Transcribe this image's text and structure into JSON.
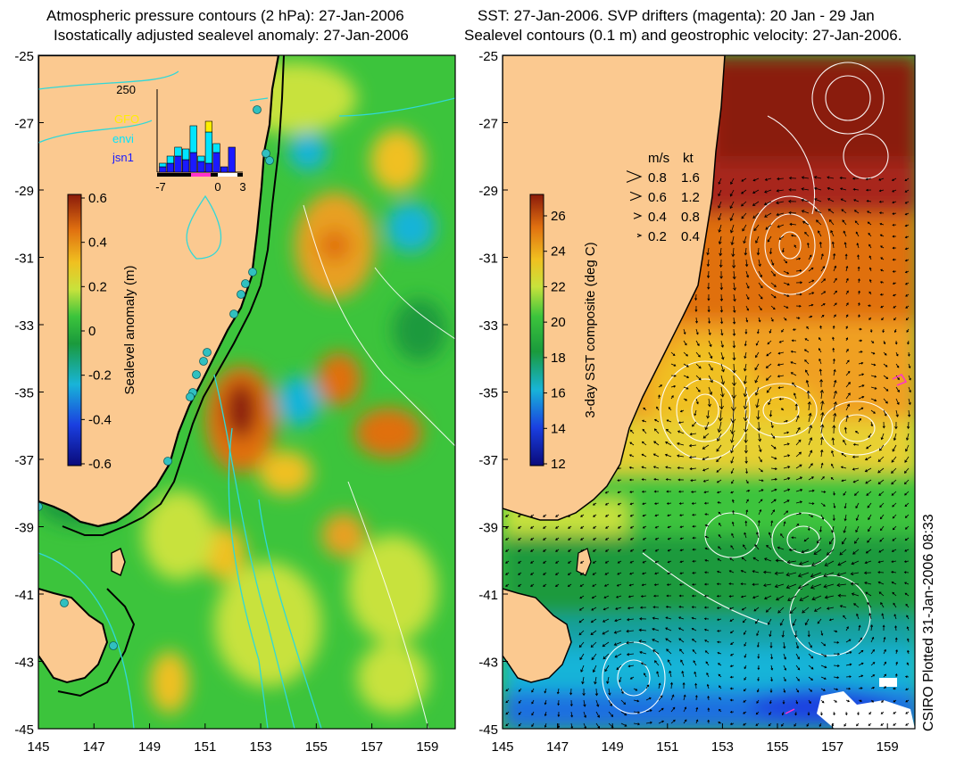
{
  "left_panel": {
    "title_line1": "Atmospheric pressure contours (2 hPa): 27-Jan-2006",
    "title_line2": "Isostatically adjusted sealevel anomaly: 27-Jan-2006",
    "colorbar_label": "Sealevel anomaly (m)",
    "colorbar_ticks": [
      "0.6",
      "0.4",
      "0.2",
      "0",
      "-0.2",
      "-0.4",
      "-0.6"
    ],
    "histogram": {
      "y_top_label": "250",
      "legend": [
        {
          "name": "GFO",
          "color": "#ffee00"
        },
        {
          "name": "envi",
          "color": "#00e5ff"
        },
        {
          "name": "jsn1",
          "color": "#1a1aff"
        }
      ],
      "x_ticks": [
        "-7",
        "0",
        "3"
      ]
    }
  },
  "right_panel": {
    "title_line1": "SST: 27-Jan-2006. SVP drifters (magenta): 20 Jan - 29 Jan",
    "title_line2": "Sealevel contours (0.1 m) and geostrophic velocity: 27-Jan-2006.",
    "colorbar_label": "3-day SST composite (deg C)",
    "colorbar_ticks": [
      "26",
      "24",
      "22",
      "20",
      "18",
      "16",
      "14",
      "12"
    ],
    "velocity_legend": {
      "header_ms": "m/s",
      "header_kt": "kt",
      "rows": [
        {
          "ms": "0.8",
          "kt": "1.6"
        },
        {
          "ms": "0.6",
          "kt": "1.2"
        },
        {
          "ms": "0.4",
          "kt": "0.8"
        },
        {
          "ms": "0.2",
          "kt": "0.4"
        }
      ]
    }
  },
  "axes": {
    "lat_ticks": [
      "-25",
      "-27",
      "-29",
      "-31",
      "-33",
      "-35",
      "-37",
      "-39",
      "-41",
      "-43",
      "-45"
    ],
    "lon_ticks": [
      "145",
      "147",
      "149",
      "151",
      "153",
      "155",
      "157",
      "159"
    ]
  },
  "credit": "CSIRO Plotted 31-Jan-2006 08:33",
  "colors": {
    "land": "#fbc990",
    "coast": "#000000",
    "pressure_contours": "#30d8d8",
    "sealevel_contours": "#ffffff"
  }
}
